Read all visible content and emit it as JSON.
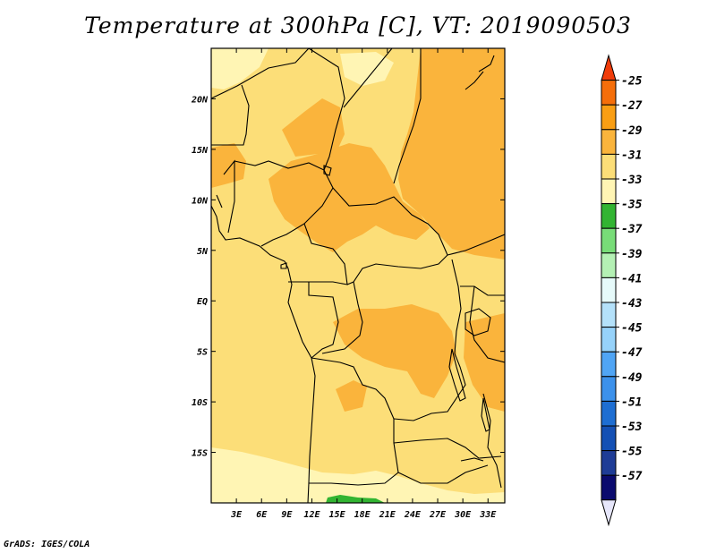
{
  "title": "Temperature at 300hPa [C], VT: 2019090503",
  "credit": "GrADS: IGES/COLA",
  "map": {
    "lon_range": [
      0,
      35
    ],
    "lat_range": [
      -20,
      25
    ],
    "x_ticks": [
      "3E",
      "6E",
      "9E",
      "12E",
      "15E",
      "18E",
      "21E",
      "24E",
      "27E",
      "30E",
      "33E"
    ],
    "x_tick_lons": [
      3,
      6,
      9,
      12,
      15,
      18,
      21,
      24,
      27,
      30,
      33
    ],
    "y_ticks": [
      "20N",
      "15N",
      "10N",
      "5N",
      "EQ",
      "5S",
      "10S",
      "15S"
    ],
    "y_tick_lats": [
      20,
      15,
      10,
      5,
      0,
      -5,
      -10,
      -15
    ]
  },
  "colorbar": {
    "labels": [
      "-25",
      "-27",
      "-29",
      "-31",
      "-33",
      "-35",
      "-37",
      "-39",
      "-41",
      "-43",
      "-45",
      "-47",
      "-49",
      "-51",
      "-53",
      "-55",
      "-57"
    ],
    "colors_top_to_bottom": [
      "#f03c0a",
      "#f56e0a",
      "#f99e14",
      "#fab43c",
      "#fcde78",
      "#fff5b4",
      "#32b432",
      "#78dc78",
      "#b4f0b4",
      "#e6fafa",
      "#b4e1fa",
      "#96d2fa",
      "#50a5f5",
      "#3c91eb",
      "#1e6ed2",
      "#1450b4",
      "#1e3c96",
      "#0a0a6e",
      "#e6e6fa"
    ]
  },
  "field_colors": {
    "-31": "#fcde78",
    "-29": "#fab43c",
    "-33": "#fff5b4",
    "-37": "#32b432"
  }
}
